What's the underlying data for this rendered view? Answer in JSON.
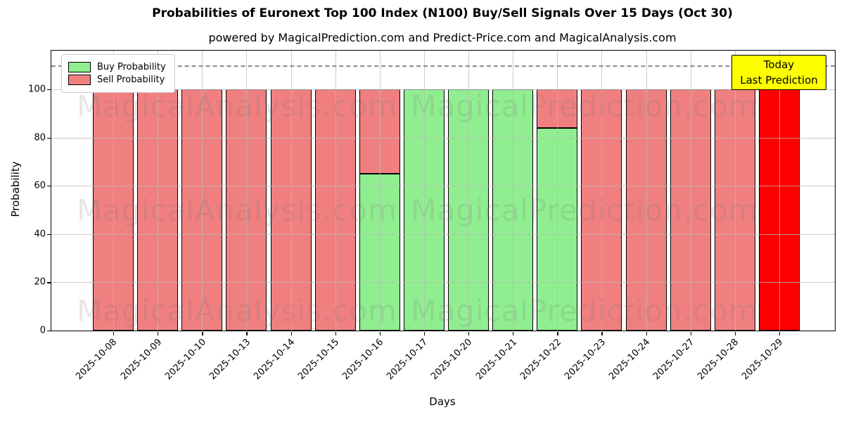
{
  "subtitle": "powered by MagicalPrediction.com and Predict-Price.com and MagicalAnalysis.com",
  "annotation": {
    "line1": "Today",
    "line2": "Last Prediction",
    "bg_color": "#FFFF00"
  },
  "watermarks": {
    "left": "MagicalAnalysis.com",
    "right": "MagicalPrediction.com"
  },
  "colors": {
    "buy": "#90EE90",
    "sell": "#F08080",
    "today_bar": "#FF0000",
    "annotation_bg": "#FFFF00",
    "grid": "#b9b9b9",
    "dashed_line": "#8a8a8a",
    "bar_edge": "#000000",
    "watermark": "#6e6e6e"
  },
  "chart_data": {
    "type": "bar",
    "stacked": true,
    "title": "Probabilities of Euronext Top 100 Index (N100) Buy/Sell Signals Over 15 Days (Oct 30)",
    "categories": [
      "2025-10-08",
      "2025-10-09",
      "2025-10-10",
      "2025-10-13",
      "2025-10-14",
      "2025-10-15",
      "2025-10-16",
      "2025-10-17",
      "2025-10-20",
      "2025-10-21",
      "2025-10-22",
      "2025-10-23",
      "2025-10-24",
      "2025-10-27",
      "2025-10-28",
      "2025-10-29"
    ],
    "series": [
      {
        "name": "Buy Probability",
        "color": "#90EE90",
        "values": [
          0,
          0,
          0,
          0,
          0,
          0,
          65,
          100,
          100,
          100,
          84,
          0,
          0,
          0,
          0,
          0
        ]
      },
      {
        "name": "Sell Probability",
        "color": "#F08080",
        "values": [
          100,
          100,
          100,
          100,
          100,
          100,
          35,
          0,
          0,
          0,
          16,
          100,
          100,
          100,
          100,
          100
        ]
      }
    ],
    "today": {
      "index": 15,
      "category": "2025-10-29",
      "color": "#FF0000"
    },
    "xlabel": "Days",
    "ylabel": "Probability",
    "yticks": [
      0,
      20,
      40,
      60,
      80,
      100
    ],
    "ylim": [
      0,
      116
    ],
    "dashed_line_y": 110,
    "grid": true,
    "legend_position": "upper left"
  }
}
